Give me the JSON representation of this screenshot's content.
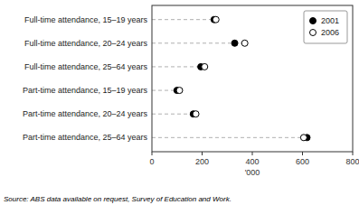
{
  "chart_data": {
    "type": "dot",
    "orientation": "horizontal",
    "categories": [
      "Full-time attendance, 15–19 years",
      "Full-time attendance, 20–24 years",
      "Full-time attendance, 25–64 years",
      "Part-time attendance, 15–19 years",
      "Part-time attendance, 20–24 years",
      "Part-time attendance, 25–64 years"
    ],
    "series": [
      {
        "name": "2001",
        "color": "#000000",
        "marker": "circle",
        "values": [
          248,
          330,
          195,
          100,
          165,
          618
        ]
      },
      {
        "name": "2006",
        "color": "#000000",
        "marker": "open-circle",
        "values": [
          255,
          370,
          210,
          110,
          175,
          605
        ]
      }
    ],
    "xlabel": "'000",
    "xlim": [
      0,
      800
    ],
    "xticks": [
      0,
      200,
      400,
      600,
      800
    ],
    "legend": "upper right",
    "annotations": [
      "Source: ABS data available on request,  Survey of Education and Work."
    ]
  }
}
